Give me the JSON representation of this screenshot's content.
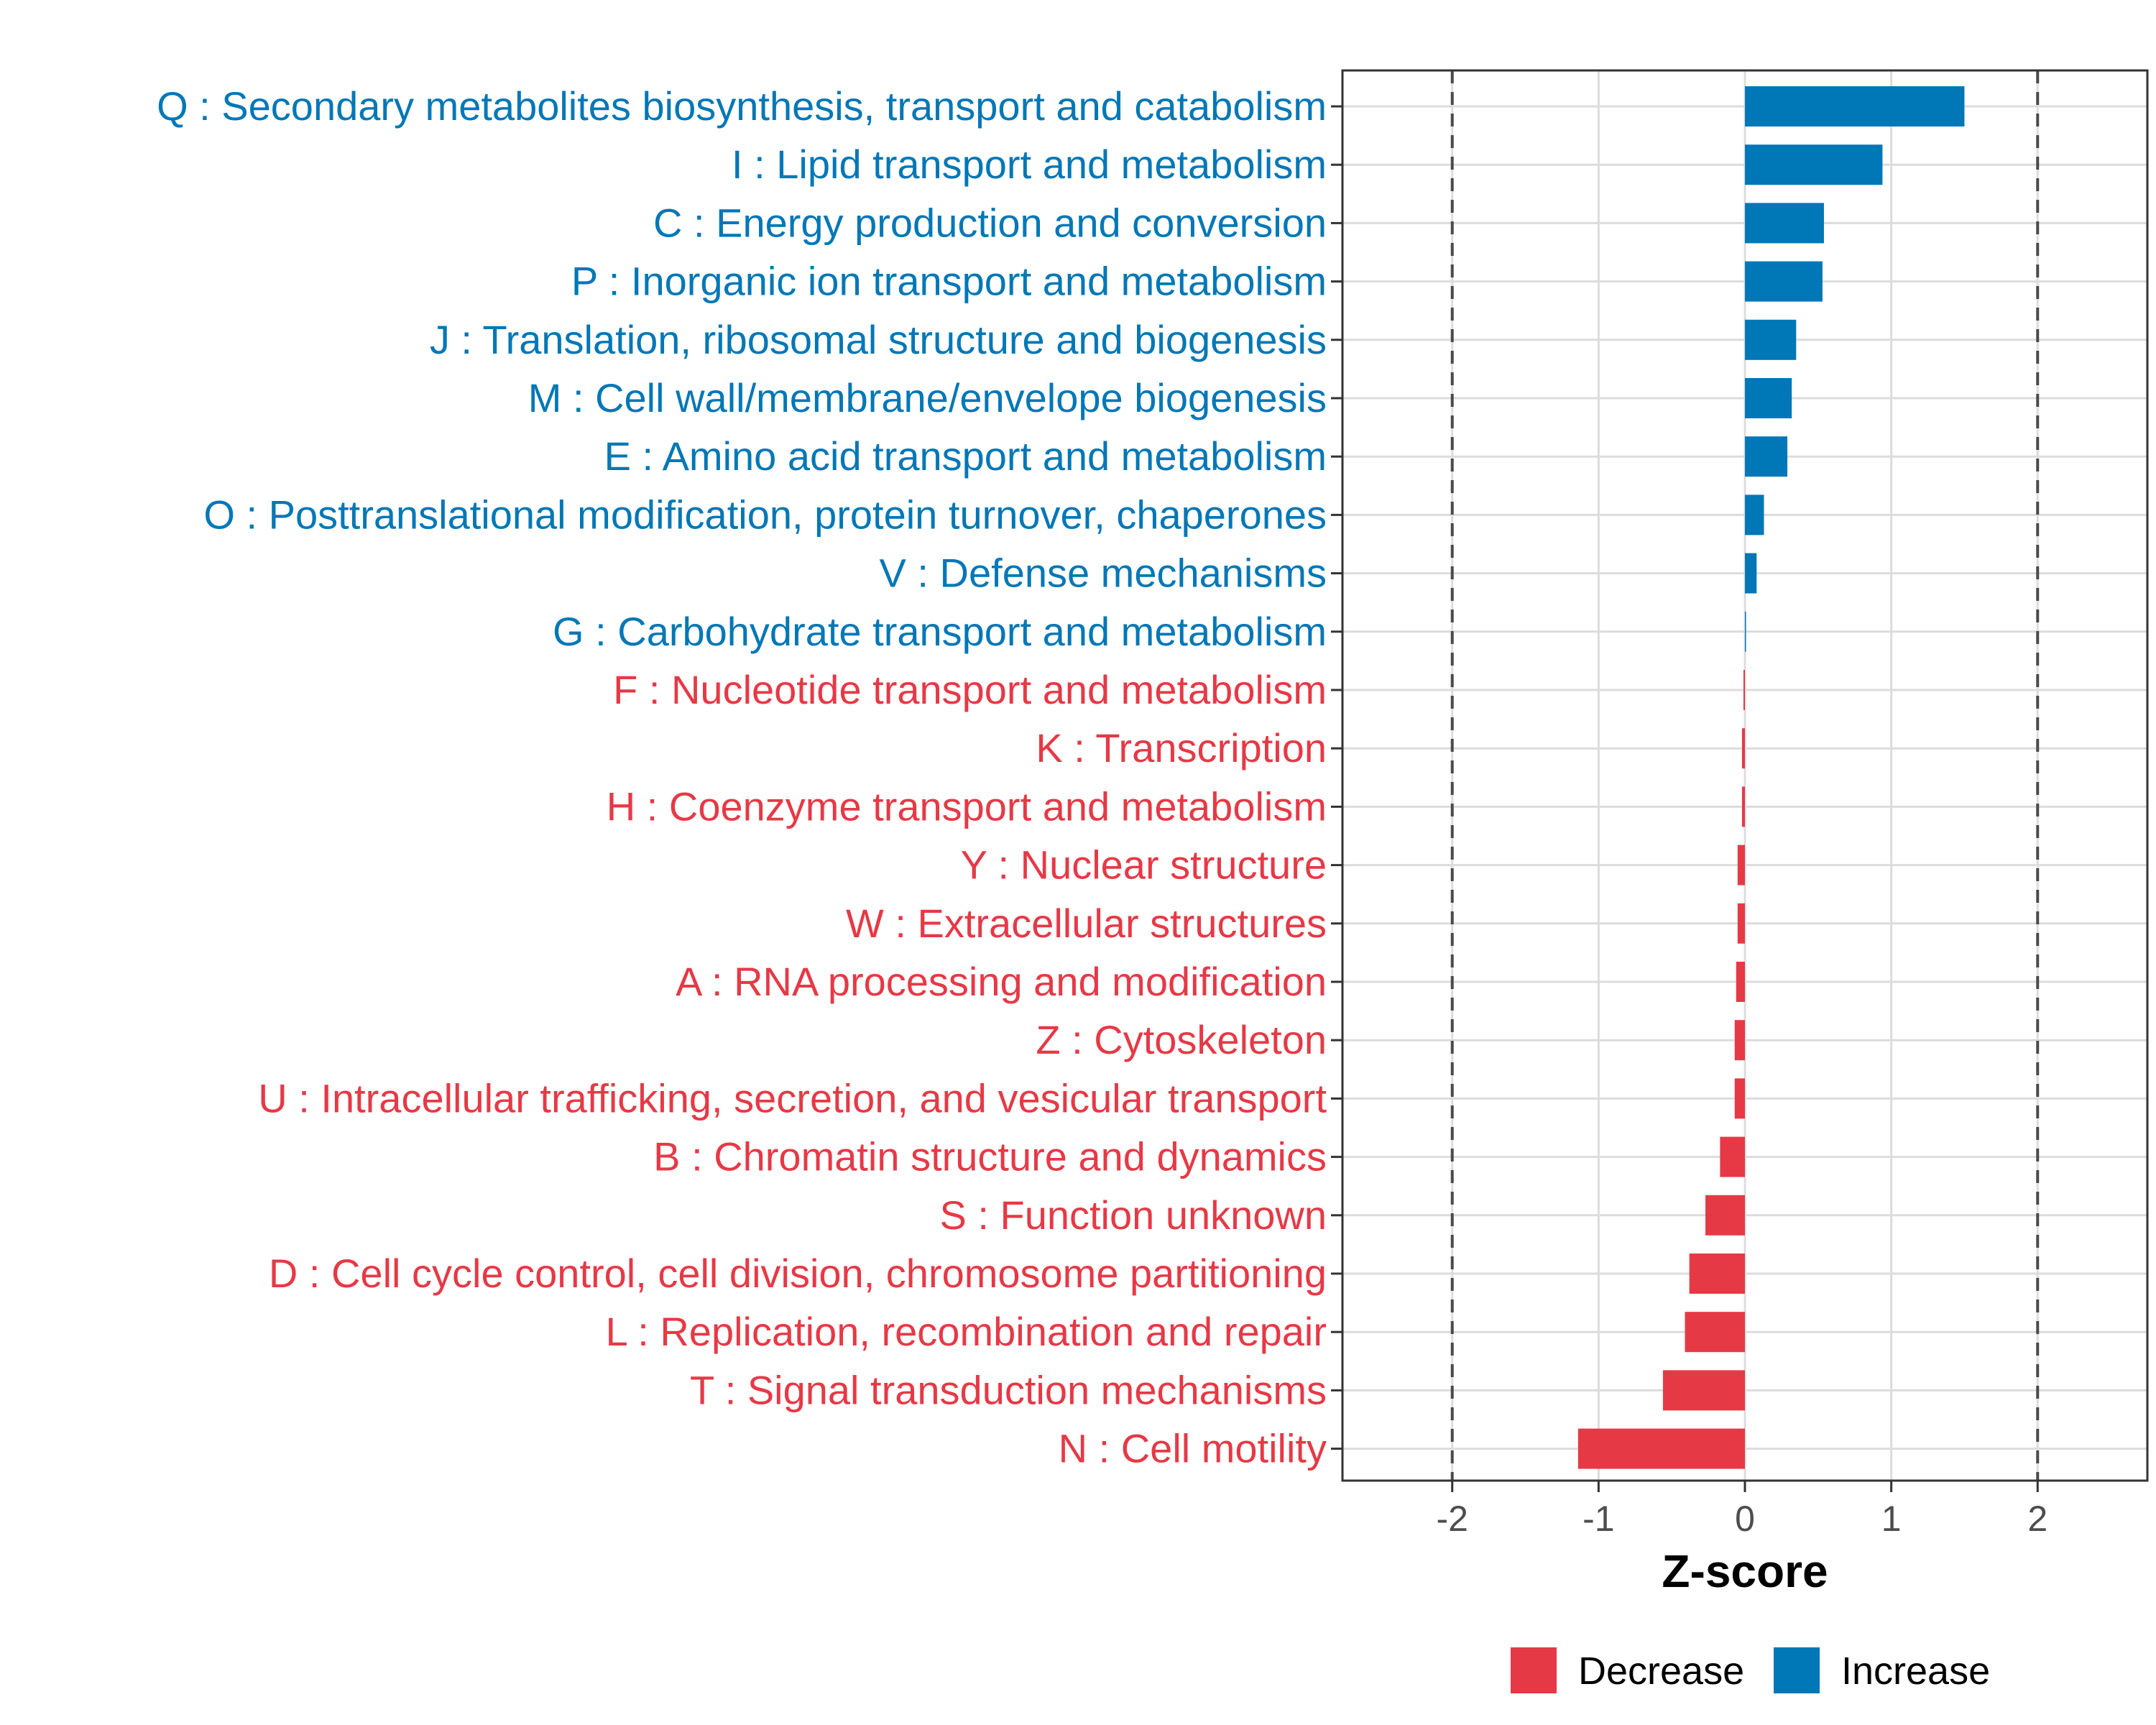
{
  "chart_data": {
    "type": "bar",
    "orientation": "horizontal",
    "title": "",
    "xlabel": "Z-score",
    "ylabel": "",
    "xlim": [
      -2.75,
      2.75
    ],
    "xticks": [
      -2,
      -1,
      0,
      1,
      2
    ],
    "xtick_labels": [
      "-2",
      "-1",
      "0",
      "1",
      "2"
    ],
    "reference_lines": [
      -2,
      2
    ],
    "grid": true,
    "colors": {
      "Decrease": "#e63946",
      "Increase": "#0077b6"
    },
    "legend": {
      "position": "bottom",
      "entries": [
        {
          "name": "Decrease",
          "color": "#e63946"
        },
        {
          "name": "Increase",
          "color": "#0077b6"
        }
      ]
    },
    "categories": [
      "Q : Secondary metabolites biosynthesis, transport and catabolism",
      "I : Lipid transport and metabolism",
      "C : Energy production and conversion",
      "P : Inorganic ion transport and metabolism",
      "J : Translation, ribosomal structure and biogenesis",
      "M : Cell wall/membrane/envelope biogenesis",
      "E : Amino acid transport and metabolism",
      "O : Posttranslational modification, protein turnover, chaperones",
      "V : Defense mechanisms",
      "G : Carbohydrate transport and metabolism",
      "F : Nucleotide transport and metabolism",
      "K : Transcription",
      "H : Coenzyme transport and metabolism",
      "Y : Nuclear structure",
      "W : Extracellular structures",
      "A : RNA processing and modification",
      "Z : Cytoskeleton",
      "U : Intracellular trafficking, secretion, and vesicular transport",
      "B : Chromatin structure and dynamics",
      "S : Function unknown",
      "D : Cell cycle control, cell division, chromosome partitioning",
      "L : Replication, recombination and repair",
      "T : Signal transduction mechanisms",
      "N : Cell motility"
    ],
    "values": [
      1.5,
      0.94,
      0.54,
      0.53,
      0.35,
      0.32,
      0.29,
      0.13,
      0.08,
      0.0,
      -0.01,
      -0.02,
      -0.02,
      -0.05,
      -0.05,
      -0.06,
      -0.07,
      -0.07,
      -0.17,
      -0.27,
      -0.38,
      -0.41,
      -0.56,
      -1.14
    ],
    "groups": [
      "Increase",
      "Increase",
      "Increase",
      "Increase",
      "Increase",
      "Increase",
      "Increase",
      "Increase",
      "Increase",
      "Increase",
      "Decrease",
      "Decrease",
      "Decrease",
      "Decrease",
      "Decrease",
      "Decrease",
      "Decrease",
      "Decrease",
      "Decrease",
      "Decrease",
      "Decrease",
      "Decrease",
      "Decrease",
      "Decrease"
    ]
  }
}
